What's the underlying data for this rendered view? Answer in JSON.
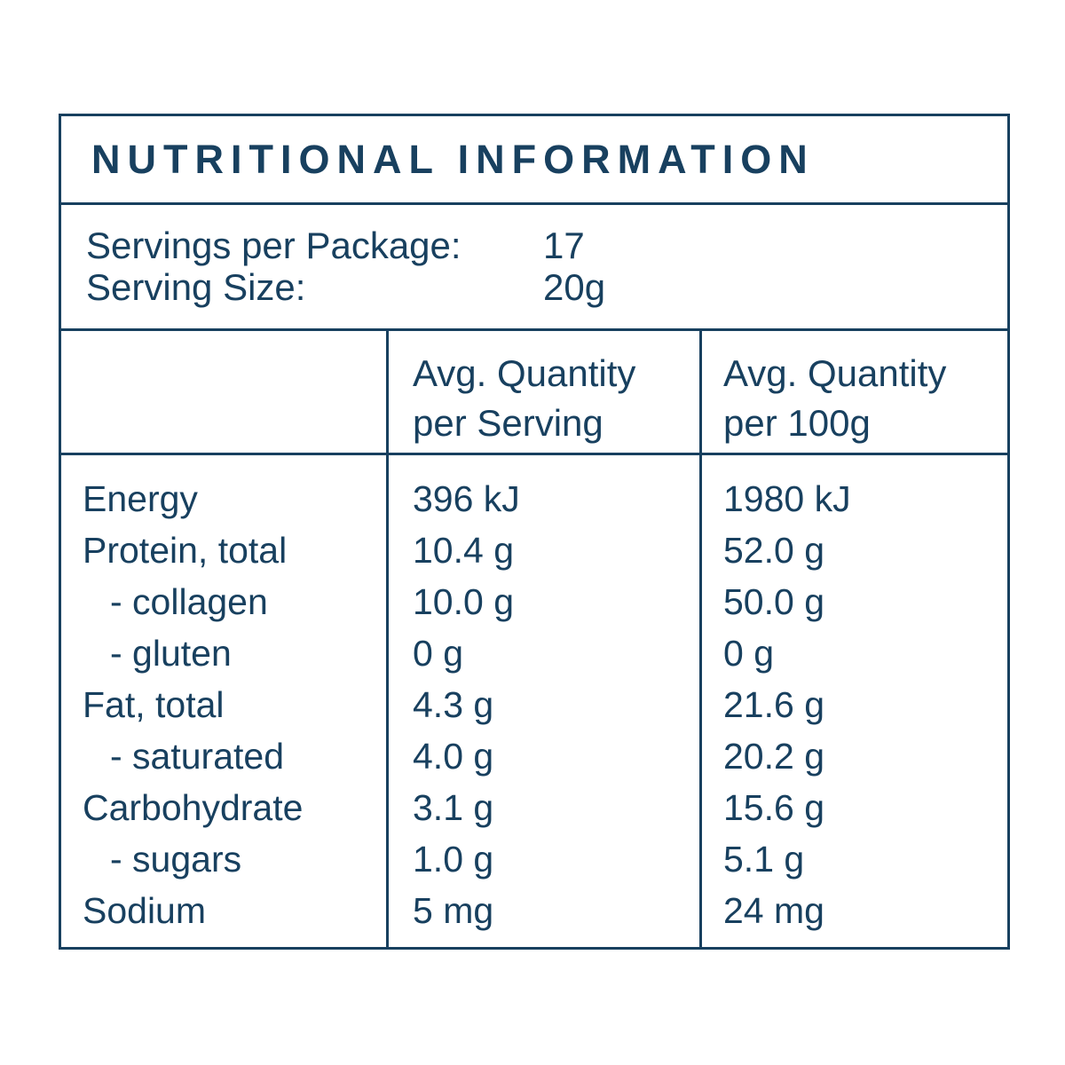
{
  "title": "NUTRITIONAL INFORMATION",
  "colors": {
    "ink": "#18405F",
    "background": "#FFFFFF"
  },
  "servings": {
    "package_label": "Servings per Package:",
    "package_value": "17",
    "size_label": "Serving Size:",
    "size_value": "20g"
  },
  "header": {
    "serving_line1": "Avg. Quantity",
    "serving_line2": "per Serving",
    "per100_line1": "Avg. Quantity",
    "per100_line2": "per 100g"
  },
  "rows": [
    {
      "label": "Energy",
      "indent": false,
      "per_serving": "396 kJ",
      "per_100g": "1980 kJ"
    },
    {
      "label": "Protein, total",
      "indent": false,
      "per_serving": "10.4 g",
      "per_100g": "52.0 g"
    },
    {
      "label": "- collagen",
      "indent": true,
      "per_serving": "10.0 g",
      "per_100g": "50.0 g"
    },
    {
      "label": "- gluten",
      "indent": true,
      "per_serving": "0 g",
      "per_100g": "0 g"
    },
    {
      "label": "Fat, total",
      "indent": false,
      "per_serving": "4.3 g",
      "per_100g": "21.6 g"
    },
    {
      "label": "- saturated",
      "indent": true,
      "per_serving": "4.0 g",
      "per_100g": "20.2 g"
    },
    {
      "label": "Carbohydrate",
      "indent": false,
      "per_serving": "3.1 g",
      "per_100g": "15.6 g"
    },
    {
      "label": "- sugars",
      "indent": true,
      "per_serving": "1.0 g",
      "per_100g": "5.1 g"
    },
    {
      "label": "Sodium",
      "indent": false,
      "per_serving": "5 mg",
      "per_100g": "24 mg"
    }
  ]
}
